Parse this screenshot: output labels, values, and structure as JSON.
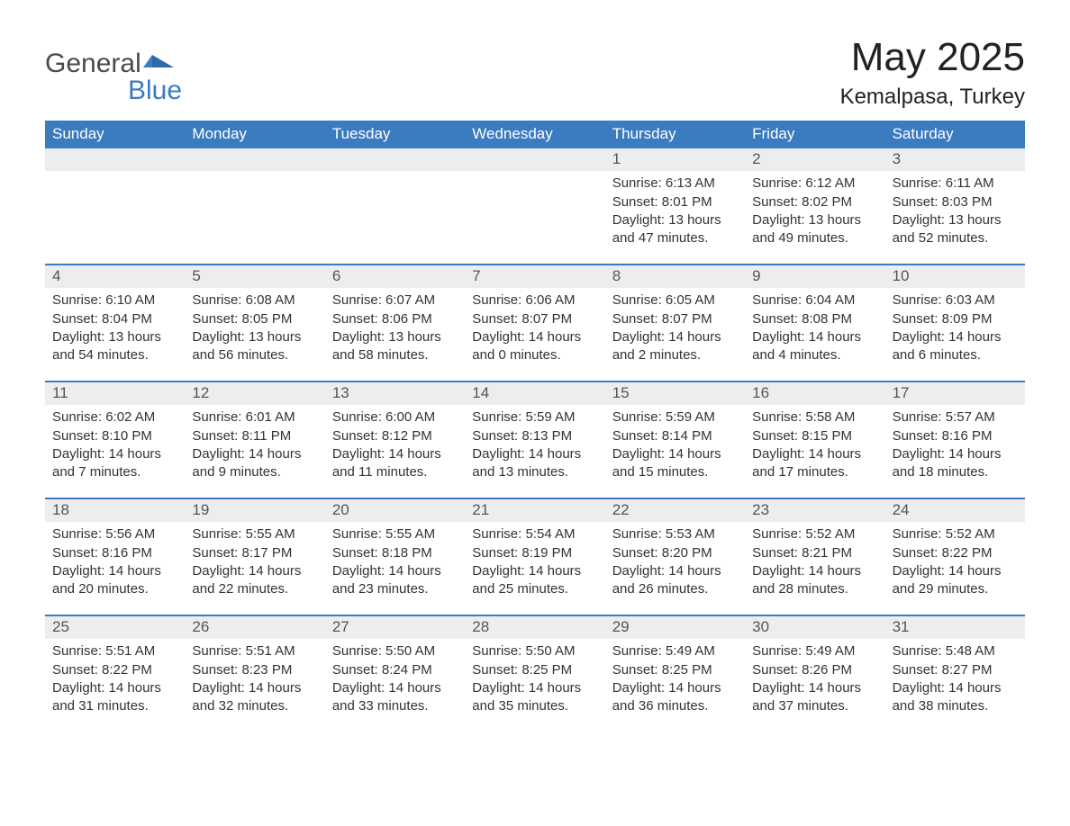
{
  "brand": {
    "word1": "General",
    "word2": "Blue"
  },
  "title": "May 2025",
  "location": "Kemalpasa, Turkey",
  "colors": {
    "blue_primary": "#3b7bbf",
    "row_stripe": "#ededed",
    "text": "#333333",
    "bg": "#ffffff"
  },
  "weekdays": [
    "Sunday",
    "Monday",
    "Tuesday",
    "Wednesday",
    "Thursday",
    "Friday",
    "Saturday"
  ],
  "weeks": [
    {
      "days": [
        null,
        null,
        null,
        null,
        {
          "n": "1",
          "sunrise": "6:13 AM",
          "sunset": "8:01 PM",
          "daylight": "13 hours and 47 minutes."
        },
        {
          "n": "2",
          "sunrise": "6:12 AM",
          "sunset": "8:02 PM",
          "daylight": "13 hours and 49 minutes."
        },
        {
          "n": "3",
          "sunrise": "6:11 AM",
          "sunset": "8:03 PM",
          "daylight": "13 hours and 52 minutes."
        }
      ]
    },
    {
      "days": [
        {
          "n": "4",
          "sunrise": "6:10 AM",
          "sunset": "8:04 PM",
          "daylight": "13 hours and 54 minutes."
        },
        {
          "n": "5",
          "sunrise": "6:08 AM",
          "sunset": "8:05 PM",
          "daylight": "13 hours and 56 minutes."
        },
        {
          "n": "6",
          "sunrise": "6:07 AM",
          "sunset": "8:06 PM",
          "daylight": "13 hours and 58 minutes."
        },
        {
          "n": "7",
          "sunrise": "6:06 AM",
          "sunset": "8:07 PM",
          "daylight": "14 hours and 0 minutes."
        },
        {
          "n": "8",
          "sunrise": "6:05 AM",
          "sunset": "8:07 PM",
          "daylight": "14 hours and 2 minutes."
        },
        {
          "n": "9",
          "sunrise": "6:04 AM",
          "sunset": "8:08 PM",
          "daylight": "14 hours and 4 minutes."
        },
        {
          "n": "10",
          "sunrise": "6:03 AM",
          "sunset": "8:09 PM",
          "daylight": "14 hours and 6 minutes."
        }
      ]
    },
    {
      "days": [
        {
          "n": "11",
          "sunrise": "6:02 AM",
          "sunset": "8:10 PM",
          "daylight": "14 hours and 7 minutes."
        },
        {
          "n": "12",
          "sunrise": "6:01 AM",
          "sunset": "8:11 PM",
          "daylight": "14 hours and 9 minutes."
        },
        {
          "n": "13",
          "sunrise": "6:00 AM",
          "sunset": "8:12 PM",
          "daylight": "14 hours and 11 minutes."
        },
        {
          "n": "14",
          "sunrise": "5:59 AM",
          "sunset": "8:13 PM",
          "daylight": "14 hours and 13 minutes."
        },
        {
          "n": "15",
          "sunrise": "5:59 AM",
          "sunset": "8:14 PM",
          "daylight": "14 hours and 15 minutes."
        },
        {
          "n": "16",
          "sunrise": "5:58 AM",
          "sunset": "8:15 PM",
          "daylight": "14 hours and 17 minutes."
        },
        {
          "n": "17",
          "sunrise": "5:57 AM",
          "sunset": "8:16 PM",
          "daylight": "14 hours and 18 minutes."
        }
      ]
    },
    {
      "days": [
        {
          "n": "18",
          "sunrise": "5:56 AM",
          "sunset": "8:16 PM",
          "daylight": "14 hours and 20 minutes."
        },
        {
          "n": "19",
          "sunrise": "5:55 AM",
          "sunset": "8:17 PM",
          "daylight": "14 hours and 22 minutes."
        },
        {
          "n": "20",
          "sunrise": "5:55 AM",
          "sunset": "8:18 PM",
          "daylight": "14 hours and 23 minutes."
        },
        {
          "n": "21",
          "sunrise": "5:54 AM",
          "sunset": "8:19 PM",
          "daylight": "14 hours and 25 minutes."
        },
        {
          "n": "22",
          "sunrise": "5:53 AM",
          "sunset": "8:20 PM",
          "daylight": "14 hours and 26 minutes."
        },
        {
          "n": "23",
          "sunrise": "5:52 AM",
          "sunset": "8:21 PM",
          "daylight": "14 hours and 28 minutes."
        },
        {
          "n": "24",
          "sunrise": "5:52 AM",
          "sunset": "8:22 PM",
          "daylight": "14 hours and 29 minutes."
        }
      ]
    },
    {
      "days": [
        {
          "n": "25",
          "sunrise": "5:51 AM",
          "sunset": "8:22 PM",
          "daylight": "14 hours and 31 minutes."
        },
        {
          "n": "26",
          "sunrise": "5:51 AM",
          "sunset": "8:23 PM",
          "daylight": "14 hours and 32 minutes."
        },
        {
          "n": "27",
          "sunrise": "5:50 AM",
          "sunset": "8:24 PM",
          "daylight": "14 hours and 33 minutes."
        },
        {
          "n": "28",
          "sunrise": "5:50 AM",
          "sunset": "8:25 PM",
          "daylight": "14 hours and 35 minutes."
        },
        {
          "n": "29",
          "sunrise": "5:49 AM",
          "sunset": "8:25 PM",
          "daylight": "14 hours and 36 minutes."
        },
        {
          "n": "30",
          "sunrise": "5:49 AM",
          "sunset": "8:26 PM",
          "daylight": "14 hours and 37 minutes."
        },
        {
          "n": "31",
          "sunrise": "5:48 AM",
          "sunset": "8:27 PM",
          "daylight": "14 hours and 38 minutes."
        }
      ]
    }
  ],
  "labels": {
    "sunrise": "Sunrise: ",
    "sunset": "Sunset: ",
    "daylight": "Daylight: "
  }
}
